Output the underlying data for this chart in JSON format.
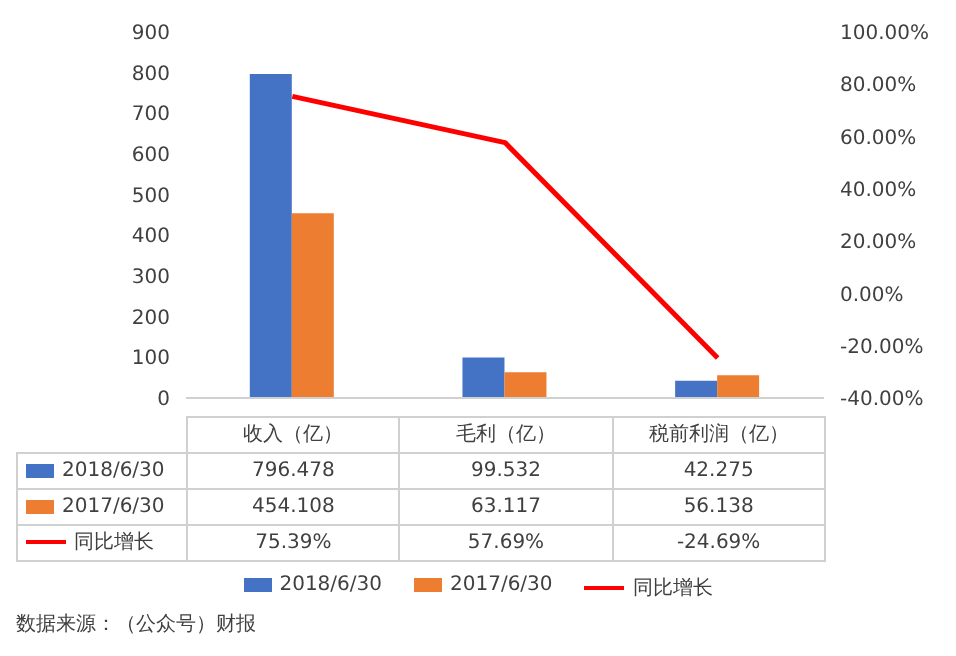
{
  "chart_data": {
    "type": "bar",
    "categories": [
      "收入（亿）",
      "毛利（亿）",
      "税前利润（亿）"
    ],
    "series": [
      {
        "name": "2018/6/30",
        "color": "#4472c4",
        "values": [
          796.478,
          99.532,
          42.275
        ],
        "value_labels": [
          "796.478",
          "99.532",
          "42.275"
        ]
      },
      {
        "name": "2017/6/30",
        "color": "#ed7d31",
        "values": [
          454.108,
          63.117,
          56.138
        ],
        "value_labels": [
          "454.108",
          "63.117",
          "56.138"
        ]
      },
      {
        "name": "同比增长",
        "type": "line",
        "axis": "y2",
        "color": "#ff0000",
        "values": [
          75.39,
          57.69,
          -24.69
        ],
        "value_labels": [
          "75.39%",
          "57.69%",
          "-24.69%"
        ]
      }
    ],
    "ylim": [
      0,
      900
    ],
    "yticks": [
      0,
      100,
      200,
      300,
      400,
      500,
      600,
      700,
      800,
      900
    ],
    "y2lim": [
      -40,
      100
    ],
    "y2ticks": [
      {
        "value": -40,
        "label": "-40.00%"
      },
      {
        "value": -20,
        "label": "-20.00%"
      },
      {
        "value": 0,
        "label": "0.00%"
      },
      {
        "value": 20,
        "label": "20.00%"
      },
      {
        "value": 40,
        "label": "40.00%"
      },
      {
        "value": 60,
        "label": "60.00%"
      },
      {
        "value": 80,
        "label": "80.00%"
      },
      {
        "value": 100,
        "label": "100.00%"
      }
    ],
    "grid": false,
    "legend": "bottom",
    "marker": "none",
    "line_style": "solid",
    "annotations": [
      "数据来源：（公众号）财报"
    ]
  }
}
